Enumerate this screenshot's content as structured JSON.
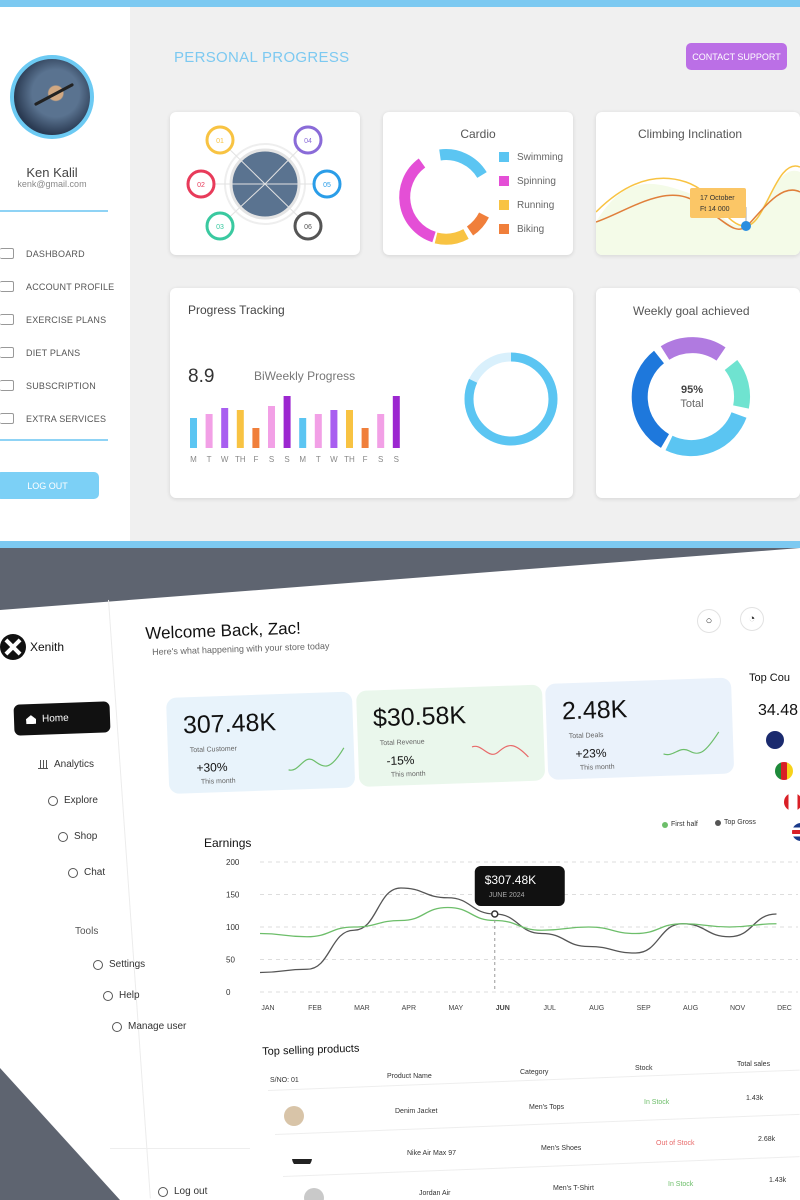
{
  "top_panel": {
    "user": {
      "name": "Ken Kalil",
      "email": "kenk@gmail.com"
    },
    "nav": [
      "DASHBOARD",
      "ACCOUNT PROFILE",
      "EXERCISE PLANS",
      "DIET PLANS",
      "SUBSCRIPTION",
      "EXTRA SERVICES"
    ],
    "logout_label": "LOG OUT",
    "page_title": "PERSONAL PROGRESS",
    "contact_label": "CONTACT SUPPORT",
    "steps": [
      "01",
      "02",
      "03",
      "04",
      "05",
      "06"
    ],
    "cardio": {
      "title": "Cardio",
      "legend": [
        {
          "label": "Swimming",
          "color": "#5bc5f2"
        },
        {
          "label": "Spinning",
          "color": "#e44fd6"
        },
        {
          "label": "Running",
          "color": "#f8c342"
        },
        {
          "label": "Biking",
          "color": "#f07f3b"
        }
      ]
    },
    "climbing": {
      "title": "Climbing Inclination",
      "tooltip_date": "17 October",
      "tooltip_value": "Ft 14 000"
    },
    "progress": {
      "title": "Progress Tracking",
      "value": "8.9",
      "label": "BiWeekly Progress",
      "days": [
        "M",
        "T",
        "W",
        "TH",
        "F",
        "S",
        "S",
        "M",
        "T",
        "W",
        "TH",
        "F",
        "S",
        "S"
      ],
      "bar_colors": [
        "#5bc5f2",
        "#f2a0e6",
        "#a85ef0",
        "#f8c342",
        "#f07f3b",
        "#f2a0e6",
        "#9c27d0",
        "#5bc5f2",
        "#f2a0e6",
        "#a85ef0",
        "#f8c342",
        "#f07f3b",
        "#f2a0e6",
        "#9c27d0"
      ],
      "ring_level": 0.82
    },
    "weekly_goal": {
      "title": "Weekly goal achieved",
      "percent": "95%",
      "label": "Total"
    }
  },
  "bottom_panel": {
    "brand": "Xenith",
    "nav": {
      "home": "Home",
      "analytics": "Analytics",
      "explore": "Explore",
      "shop": "Shop",
      "chat": "Chat",
      "tools": "Tools",
      "settings": "Settings",
      "help": "Help",
      "manage": "Manage user",
      "logout": "Log out"
    },
    "welcome": "Welcome Back, Zac!",
    "welcome_sub": "Here's what happening with your store today",
    "stats": [
      {
        "value": "307.48K",
        "label": "Total Customer",
        "change": "+30%",
        "period": "This month",
        "bg": "#e8f3fb",
        "line": "#6dbe6a"
      },
      {
        "value": "$30.58K",
        "label": "Total Revenue",
        "change": "-15%",
        "period": "This month",
        "bg": "#eaf7ec",
        "line": "#e86a6a"
      },
      {
        "value": "2.48K",
        "label": "Total Deals",
        "change": "+23%",
        "period": "This month",
        "bg": "#eaf2fb",
        "line": "#6dbe6a"
      }
    ],
    "top_countries": {
      "title": "Top Cou",
      "value": "34.48"
    },
    "chart_data": {
      "type": "line",
      "title": "Earnings",
      "x": [
        "JAN",
        "FEB",
        "MAR",
        "APR",
        "MAY",
        "JUN",
        "JUL",
        "AUG",
        "SEP",
        "AUG",
        "NOV",
        "DEC"
      ],
      "y_ticks": [
        "200",
        "150",
        "100",
        "50",
        "0"
      ],
      "ylim": [
        0,
        200
      ],
      "series": [
        {
          "name": "Top Gross",
          "color": "#555555",
          "values": [
            30,
            35,
            95,
            160,
            145,
            120,
            90,
            70,
            60,
            105,
            85,
            120
          ]
        },
        {
          "name": "First half",
          "color": "#6dbe6a",
          "values": [
            90,
            85,
            100,
            110,
            130,
            110,
            95,
            100,
            90,
            105,
            100,
            105
          ]
        }
      ],
      "tooltip": {
        "value": "$307.48K",
        "date": "JUNE 2024"
      }
    },
    "table": {
      "title": "Top selling products",
      "headers": [
        "S/NO: 01",
        "Product Name",
        "Category",
        "Stock",
        "Total sales"
      ],
      "rows": [
        {
          "name": "Denim Jacket",
          "category": "Men's Tops",
          "stock": "In Stock",
          "sales": "1.43k",
          "stock_color": "#6dbe6a"
        },
        {
          "name": "Nike Air Max 97",
          "category": "Men's Shoes",
          "stock": "Out of Stock",
          "sales": "2.68k",
          "stock_color": "#e86a6a"
        },
        {
          "name": "Jordan Air",
          "category": "Men's T-Shirt",
          "stock": "In Stock",
          "sales": "1.43k",
          "stock_color": "#6dbe6a"
        }
      ]
    }
  }
}
